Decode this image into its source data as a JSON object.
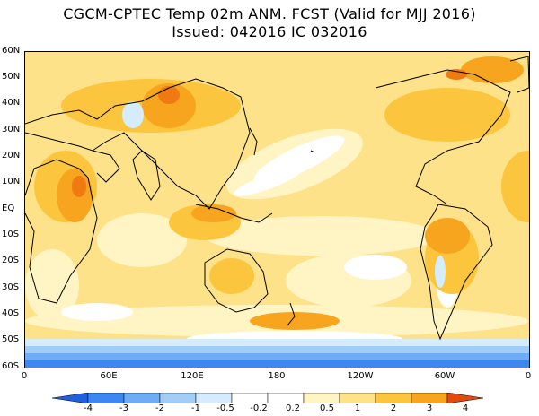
{
  "title": {
    "line1": "CGCM-CPTEC Temp 02m ANM. FCST  (Valid for MJJ 2016)",
    "line2": "Issued:  042016 IC 032016"
  },
  "latitude_labels": [
    "60N",
    "50N",
    "40N",
    "30N",
    "20N",
    "10N",
    "EQ",
    "10S",
    "20S",
    "30S",
    "40S",
    "50S",
    "60S"
  ],
  "longitude_labels": [
    "0",
    "60E",
    "120E",
    "180",
    "120W",
    "60W",
    "0"
  ],
  "colorbar": {
    "labels": [
      "-4",
      "-3",
      "-2",
      "-1",
      "-0.5",
      "-0.2",
      "0.2",
      "0.5",
      "1",
      "2",
      "3",
      "4"
    ],
    "colors": [
      "#1f5fe0",
      "#3d87f0",
      "#6eacf5",
      "#a2cdf7",
      "#d4ecfb",
      "#ffffff",
      "#fff5c4",
      "#fde289",
      "#fbc53e",
      "#f7a51f",
      "#f07a12",
      "#e34a0f"
    ]
  },
  "map_colors": {
    "background": "#fde289",
    "light": "#fff5c4",
    "neutral": "#ffffff",
    "warm1": "#fbc53e",
    "warm2": "#f7a51f",
    "warm3": "#f07a12",
    "cool1": "#d4ecfb",
    "cool2": "#a2cdf7",
    "cool3": "#6eacf5",
    "cool4": "#3d87f0",
    "coast": "#000000"
  }
}
